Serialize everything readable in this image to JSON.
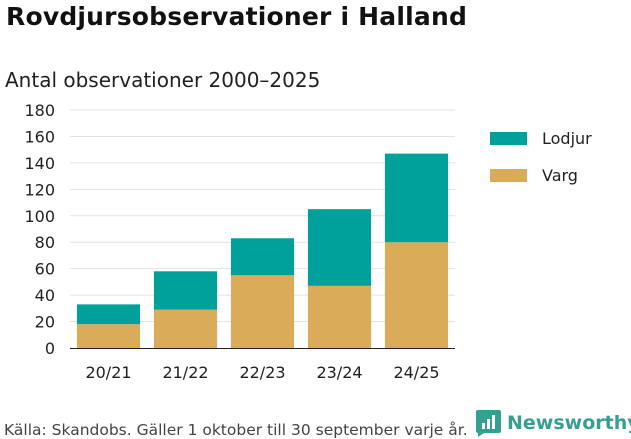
{
  "title": "Rovdjursobservationer i Halland",
  "subtitle": "Antal observationer 2000–2025",
  "source": "Källa: Skandobs. Gäller 1 oktober till 30 september varje år.",
  "brand": "Newsworthy",
  "chart_data": {
    "type": "bar",
    "stacked": true,
    "categories": [
      "20/21",
      "21/22",
      "22/23",
      "23/24",
      "24/25"
    ],
    "series": [
      {
        "name": "Varg",
        "values": [
          18,
          29,
          55,
          47,
          80
        ],
        "color": "#daac5a"
      },
      {
        "name": "Lodjur",
        "values": [
          15,
          29,
          28,
          58,
          67
        ],
        "color": "#00a19a"
      }
    ],
    "ylim": [
      0,
      180
    ],
    "yticks": [
      "0",
      "20",
      "40",
      "60",
      "80",
      "100",
      "120",
      "140",
      "160",
      "180"
    ],
    "grid": true,
    "legend": "right",
    "legend_order": [
      "Lodjur",
      "Varg"
    ]
  }
}
